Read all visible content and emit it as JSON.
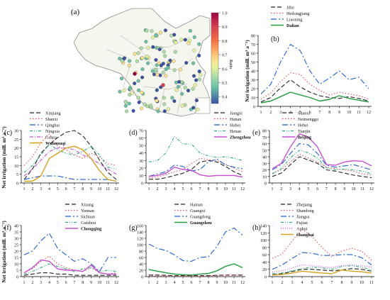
{
  "ylabel": "Net irrigation (mill. m³ a⁻¹)",
  "map": {
    "label": "(a)",
    "colorbar": {
      "title": "Ratio",
      "ticks": [
        "1.0",
        "0.9",
        "0.8",
        "0.7",
        "0.6",
        "0.5",
        "0.4"
      ],
      "range": [
        0.35,
        1.0
      ]
    }
  },
  "colors": {
    "black": "#222222",
    "red": "#e0505a",
    "blue": "#1f5fd6",
    "teal": "#27b07a",
    "green": "#1f9a3c",
    "purple": "#c94fd3",
    "orange": "#d6a11a"
  },
  "chart_data": [
    {
      "id": "b",
      "label": "(b)",
      "type": "line",
      "x": [
        1,
        2,
        3,
        4,
        5,
        6,
        7,
        8,
        9,
        10,
        11,
        12
      ],
      "ylim": [
        0,
        80
      ],
      "yticks": [
        0,
        10,
        20,
        30,
        40,
        50,
        60,
        70,
        80
      ],
      "series": [
        {
          "name": "Jilin",
          "color": "black",
          "dash": "6,3",
          "values": [
            5,
            10,
            21,
            30,
            22,
            16,
            12,
            10,
            9,
            11,
            9,
            6
          ]
        },
        {
          "name": "Heilongjiang",
          "color": "red",
          "dash": "1.5,2.5",
          "values": [
            8,
            15,
            28,
            38,
            36,
            25,
            18,
            13,
            16,
            14,
            12,
            8
          ]
        },
        {
          "name": "Liaoning",
          "color": "blue",
          "dash": "8,3,2,3",
          "values": [
            14,
            25,
            50,
            70,
            63,
            40,
            25,
            32,
            40,
            30,
            33,
            20
          ]
        },
        {
          "name": "Dalian",
          "color": "green",
          "dash": "",
          "values": [
            4,
            6,
            11,
            16,
            13,
            10,
            6,
            8,
            12,
            9,
            7,
            5
          ]
        }
      ]
    },
    {
      "id": "c",
      "label": "(c)",
      "type": "line",
      "x": [
        1,
        2,
        3,
        4,
        5,
        6,
        7,
        8,
        9,
        10,
        11,
        12
      ],
      "ylim": [
        0,
        30
      ],
      "yticks": [
        0,
        5,
        10,
        15,
        20,
        25,
        30
      ],
      "series": [
        {
          "name": "Xinjiang",
          "color": "black",
          "dash": "6,3",
          "values": [
            2,
            8,
            17,
            22,
            26,
            29,
            30,
            27,
            21,
            13,
            6,
            2
          ]
        },
        {
          "name": "Shanxi",
          "color": "red",
          "dash": "1.5,2.5",
          "values": [
            10,
            15,
            23,
            28,
            21,
            19,
            16,
            14,
            17,
            15,
            11,
            10
          ]
        },
        {
          "name": "Qinghai",
          "color": "blue",
          "dash": "8,3,2,3",
          "values": [
            2,
            3,
            4,
            4,
            4,
            3,
            2,
            2,
            2,
            2,
            2,
            1
          ]
        },
        {
          "name": "Ningxia",
          "color": "teal",
          "dash": "4,2,1,2,1,2",
          "values": [
            6,
            10,
            16,
            22,
            19,
            17,
            16,
            18,
            21,
            16,
            9,
            8
          ]
        },
        {
          "name": "Gansu",
          "color": "purple",
          "dash": "5,2,1,2",
          "values": [
            4,
            8,
            13,
            18,
            20,
            20,
            19,
            16,
            14,
            11,
            8,
            5
          ]
        },
        {
          "name": "Wulumuqi",
          "color": "orange",
          "dash": "",
          "values": [
            1,
            1,
            4,
            14,
            17,
            20,
            21,
            19,
            14,
            7,
            2,
            1
          ]
        }
      ]
    },
    {
      "id": "d",
      "label": "(d)",
      "type": "line",
      "x": [
        1,
        2,
        3,
        4,
        5,
        6,
        7,
        8,
        9,
        10,
        11,
        12
      ],
      "ylim": [
        0,
        70
      ],
      "yticks": [
        0,
        10,
        20,
        30,
        40,
        50,
        60,
        70
      ],
      "series": [
        {
          "name": "Jiangxi",
          "color": "black",
          "dash": "6,3",
          "values": [
            5,
            5,
            7,
            10,
            13,
            18,
            28,
            30,
            28,
            22,
            15,
            10
          ]
        },
        {
          "name": "Hunan",
          "color": "red",
          "dash": "1.5,2.5",
          "values": [
            7,
            8,
            11,
            15,
            18,
            26,
            33,
            31,
            30,
            25,
            20,
            15
          ]
        },
        {
          "name": "Hubei",
          "color": "blue",
          "dash": "8,3,2,3",
          "values": [
            9,
            12,
            15,
            24,
            22,
            16,
            18,
            28,
            32,
            24,
            21,
            19
          ]
        },
        {
          "name": "Henan",
          "color": "teal",
          "dash": "4,2,1,2,1,2",
          "values": [
            28,
            30,
            40,
            62,
            52,
            52,
            40,
            36,
            34,
            35,
            33,
            30
          ]
        },
        {
          "name": "Zhengzhou",
          "color": "purple",
          "dash": "",
          "values": [
            9,
            10,
            13,
            21,
            18,
            17,
            11,
            9,
            10,
            10,
            10,
            8
          ]
        }
      ]
    },
    {
      "id": "e",
      "label": "(e)",
      "type": "line",
      "x": [
        1,
        2,
        3,
        4,
        5,
        6,
        7,
        8,
        9,
        10,
        11,
        12
      ],
      "ylim": [
        0,
        80
      ],
      "yticks": [
        0,
        10,
        20,
        30,
        40,
        50,
        60,
        70,
        80
      ],
      "series": [
        {
          "name": "Shanxi",
          "color": "black",
          "dash": "6,3",
          "values": [
            10,
            15,
            28,
            40,
            35,
            30,
            20,
            18,
            15,
            12,
            10,
            8
          ]
        },
        {
          "name": "Neimenggu",
          "color": "red",
          "dash": "1.5,2.5",
          "values": [
            15,
            20,
            32,
            44,
            38,
            32,
            24,
            22,
            20,
            18,
            14,
            12
          ]
        },
        {
          "name": "Hebei",
          "color": "blue",
          "dash": "8,3,2,3",
          "values": [
            20,
            28,
            45,
            60,
            58,
            45,
            27,
            24,
            26,
            28,
            24,
            20
          ]
        },
        {
          "name": "Tianjin",
          "color": "teal",
          "dash": "4,2,1,2,1,2",
          "values": [
            14,
            22,
            38,
            50,
            46,
            38,
            23,
            20,
            21,
            20,
            18,
            14
          ]
        },
        {
          "name": "Beijing",
          "color": "purple",
          "dash": "",
          "values": [
            22,
            30,
            55,
            75,
            70,
            55,
            28,
            27,
            32,
            34,
            33,
            26
          ]
        }
      ]
    },
    {
      "id": "f",
      "label": "(f)",
      "type": "line",
      "x": [
        1,
        2,
        3,
        4,
        5,
        6,
        7,
        8,
        9,
        10,
        11,
        12
      ],
      "ylim": [
        0,
        40
      ],
      "yticks": [
        0,
        5,
        10,
        15,
        20,
        25,
        30,
        35,
        40
      ],
      "series": [
        {
          "name": "Xizang",
          "color": "black",
          "dash": "6,3",
          "values": [
            1,
            2,
            3,
            3,
            2,
            2,
            1,
            1,
            1,
            1,
            1,
            1
          ]
        },
        {
          "name": "Yunnan",
          "color": "red",
          "dash": "1.5,2.5",
          "values": [
            3,
            6,
            12,
            16,
            10,
            7,
            5,
            4,
            7,
            3,
            2,
            3
          ]
        },
        {
          "name": "Sichuan",
          "color": "blue",
          "dash": "8,3,2,3",
          "values": [
            17,
            20,
            28,
            34,
            22,
            17,
            12,
            14,
            10,
            4,
            15,
            15
          ]
        },
        {
          "name": "Guizhou",
          "color": "teal",
          "dash": "4,2,1,2,1,2",
          "values": [
            2,
            4,
            7,
            10,
            8,
            6,
            4,
            6,
            7,
            4,
            5,
            4
          ]
        },
        {
          "name": "Chongqing",
          "color": "purple",
          "dash": "",
          "values": [
            3,
            7,
            13,
            12,
            6,
            5,
            5,
            4,
            9,
            3,
            2,
            2
          ]
        }
      ]
    },
    {
      "id": "g",
      "label": "(g)",
      "type": "line",
      "x": [
        1,
        2,
        3,
        4,
        5,
        6,
        7,
        8,
        9,
        10,
        11,
        12
      ],
      "ylim": [
        0,
        160
      ],
      "yticks": [
        0,
        20,
        40,
        60,
        80,
        100,
        120,
        140,
        160
      ],
      "series": [
        {
          "name": "Hainan",
          "color": "black",
          "dash": "6,3",
          "values": [
            5,
            5,
            4,
            3,
            3,
            3,
            3,
            3,
            4,
            5,
            5,
            5
          ]
        },
        {
          "name": "Guangxi",
          "color": "red",
          "dash": "1.5,2.5",
          "values": [
            2,
            2,
            2,
            2,
            2,
            2,
            2,
            2,
            3,
            4,
            4,
            3
          ]
        },
        {
          "name": "Guangdong",
          "color": "blue",
          "dash": "8,3,2,3",
          "values": [
            102,
            88,
            82,
            68,
            50,
            48,
            60,
            62,
            95,
            140,
            152,
            130
          ]
        },
        {
          "name": "Guangzhou",
          "color": "green",
          "dash": "",
          "values": [
            22,
            17,
            12,
            8,
            6,
            5,
            8,
            10,
            18,
            32,
            40,
            28
          ]
        }
      ]
    },
    {
      "id": "h",
      "label": "(h)",
      "type": "line",
      "x": [
        1,
        2,
        3,
        4,
        5,
        6,
        7,
        8,
        9,
        10,
        11
      ],
      "ylim": [
        0,
        140
      ],
      "yticks": [
        0,
        20,
        40,
        60,
        80,
        100,
        120,
        140
      ],
      "series": [
        {
          "name": "Zhejiang",
          "color": "black",
          "dash": "6,3",
          "values": [
            5,
            8,
            14,
            20,
            20,
            18,
            16,
            18,
            22,
            20,
            15
          ]
        },
        {
          "name": "Shandong",
          "color": "red",
          "dash": "1.5,2.5",
          "values": [
            50,
            62,
            98,
            130,
            110,
            80,
            55,
            70,
            78,
            70,
            45
          ]
        },
        {
          "name": "Jiangsu",
          "color": "blue",
          "dash": "8,3,2,3",
          "values": [
            20,
            32,
            50,
            66,
            64,
            58,
            58,
            60,
            60,
            52,
            32
          ]
        },
        {
          "name": "Fujian",
          "color": "teal",
          "dash": "4,2,1,2,1,2",
          "values": [
            8,
            10,
            16,
            22,
            26,
            24,
            20,
            28,
            30,
            26,
            18
          ]
        },
        {
          "name": "Anhui",
          "color": "purple",
          "dash": "1,2",
          "values": [
            12,
            16,
            24,
            32,
            30,
            27,
            25,
            30,
            32,
            30,
            26
          ]
        },
        {
          "name": "Shanghai",
          "color": "orange",
          "dash": "",
          "values": [
            4,
            6,
            10,
            15,
            12,
            10,
            8,
            18,
            15,
            13,
            10
          ]
        }
      ]
    }
  ]
}
